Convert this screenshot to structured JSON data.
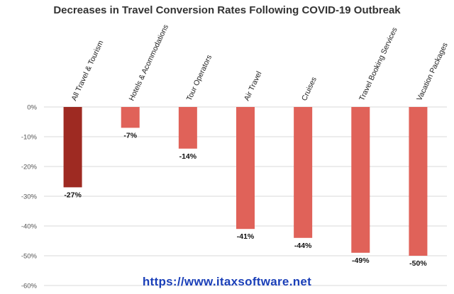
{
  "chart_data": {
    "type": "bar",
    "title": "Decreases in Travel Conversion Rates Following COVID-19 Outbreak",
    "categories": [
      "All Travel & Tourism",
      "Hotels & Acommodations",
      "Tour Operators",
      "Air Travel",
      "Cruises",
      "Travel Booking Services",
      "Vacation Packages"
    ],
    "values": [
      -27,
      -7,
      -14,
      -41,
      -44,
      -49,
      -50
    ],
    "value_labels": [
      "-27%",
      "-7%",
      "-14%",
      "-41%",
      "-44%",
      "-49%",
      "-50%"
    ],
    "ylim": [
      -60,
      0
    ],
    "yticks": [
      0,
      -10,
      -20,
      -30,
      -40,
      -50,
      -60
    ],
    "ytick_labels": [
      "0%",
      "-10%",
      "-20%",
      "-30%",
      "-40%",
      "-50%",
      "-60%"
    ],
    "xlabel": "",
    "ylabel": "",
    "grid": true,
    "legend": "none",
    "colors": {
      "highlight": "#9e2a22",
      "bar": "#e06259",
      "grid": "#d9d9d9"
    }
  },
  "watermark": "https://www.itaxsoftware.net"
}
